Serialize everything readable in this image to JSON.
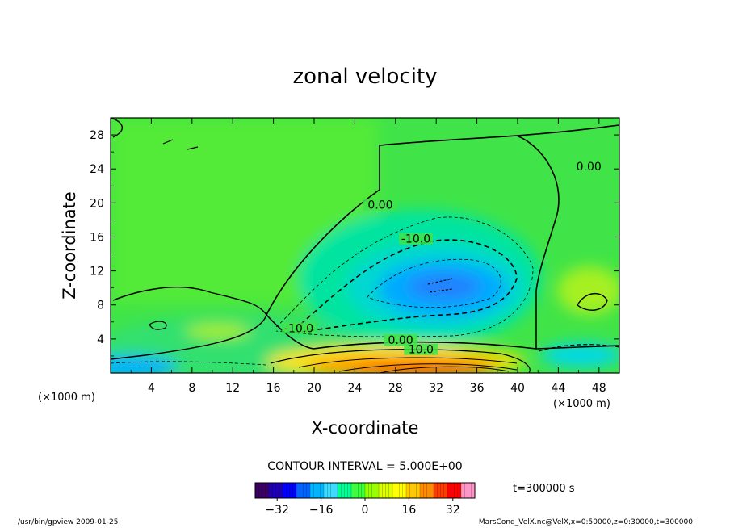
{
  "chart_data": {
    "type": "heatmap",
    "title": "zonal velocity",
    "xlabel": "X-coordinate",
    "ylabel": "Z-coordinate",
    "x_unit_label": "(×1000 m)",
    "y_unit_label": "(×1000 m)",
    "xlim": [
      0,
      50
    ],
    "ylim": [
      0,
      30
    ],
    "x_ticks": [
      4,
      8,
      12,
      16,
      20,
      24,
      28,
      32,
      36,
      40,
      44,
      48
    ],
    "y_ticks": [
      4,
      8,
      12,
      16,
      20,
      24,
      28
    ],
    "contour_interval_label": "CONTOUR INTERVAL = 5.000E+00",
    "time_label": "t=300000 s",
    "colorbar": {
      "min": -40,
      "max": 40,
      "ticks": [
        -32,
        -16,
        0,
        16,
        32
      ],
      "colors": [
        "#3c0064",
        "#1e00b4",
        "#0000ff",
        "#0064ff",
        "#00b4ff",
        "#3cdcff",
        "#00ff96",
        "#3cff3c",
        "#96ff00",
        "#dcff00",
        "#ffff00",
        "#ffc800",
        "#ff8c00",
        "#ff3c00",
        "#ff0000",
        "#ff96c8"
      ]
    },
    "contour_labels": [
      {
        "text": "0.00",
        "x": 26.5,
        "y": 19.5
      },
      {
        "text": "0.00",
        "x": 47,
        "y": 24
      },
      {
        "text": "-10.0",
        "x": 30,
        "y": 15.5
      },
      {
        "text": "-10.0",
        "x": 18.5,
        "y": 5
      },
      {
        "text": "0.00",
        "x": 28.5,
        "y": 3.6
      },
      {
        "text": "10.0",
        "x": 30.5,
        "y": 2.5
      }
    ],
    "features": [
      {
        "kind": "jet",
        "sign": "negative",
        "center_x": 32,
        "center_z": 10.5,
        "peak": -24
      },
      {
        "kind": "jet",
        "sign": "positive",
        "center_x": 31,
        "center_z": 0.3,
        "peak": 36
      }
    ]
  },
  "footer": {
    "left": "/usr/bin/gpview   2009-01-25",
    "right": "MarsCond_VelX.nc@VelX,x=0:50000,z=0:30000,t=300000"
  }
}
